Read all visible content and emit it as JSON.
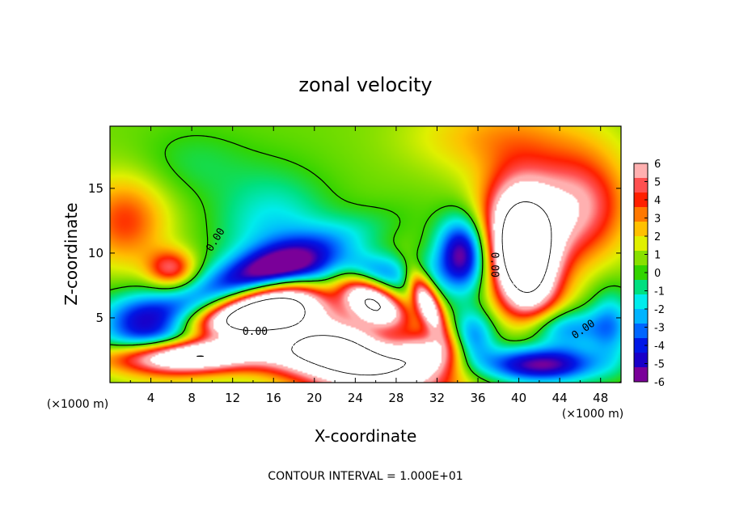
{
  "chart_data": {
    "type": "heatmap",
    "title": "zonal velocity",
    "xlabel": "X-coordinate",
    "ylabel": "Z-coordinate",
    "x_unit": "(×1000 m)",
    "y_unit": "(×1000 m)",
    "xlim": [
      0,
      50
    ],
    "ylim": [
      0,
      19.8
    ],
    "x_ticks": [
      4,
      8,
      12,
      16,
      20,
      24,
      28,
      32,
      36,
      40,
      44,
      48
    ],
    "y_ticks": [
      5,
      10,
      15
    ],
    "colorbar": {
      "range": [
        -6,
        6
      ],
      "ticks": [
        6,
        5,
        4,
        3,
        2,
        1,
        0,
        -1,
        -2,
        -3,
        -4,
        -5,
        -6
      ],
      "colors": [
        "#7a0099",
        "#1a00c8",
        "#0018e6",
        "#0066ff",
        "#00b4ff",
        "#00ecec",
        "#00e080",
        "#33d400",
        "#88e000",
        "#e0f000",
        "#ffc000",
        "#ff7800",
        "#ff2000",
        "#ff5050",
        "#ffb0b0"
      ],
      "saturated_above": "#ffffff"
    },
    "contour_interval": "1.000E+01",
    "contour_note": "CONTOUR INTERVAL = 1.000E+01",
    "contour_labels": [
      "0.00",
      "0.00",
      "0.00",
      "0.00"
    ],
    "features": [
      {
        "label": "strong positive jet (saturated)",
        "x": 14,
        "z": 5.5,
        "value": 10
      },
      {
        "label": "strong positive core (saturated)",
        "x": 22,
        "z": 2.2,
        "value": 12
      },
      {
        "label": "positive lens",
        "x": 25,
        "z": 6.5,
        "value": 8
      },
      {
        "label": "positive streak",
        "x": 31,
        "z": 6.0,
        "value": 7
      },
      {
        "label": "tall positive plume (saturated)",
        "x": 40.5,
        "z": 9.5,
        "value": 10
      },
      {
        "label": "negative band",
        "x": 24,
        "z": 8.2,
        "value": -5
      },
      {
        "label": "negative pocket",
        "x": 34.5,
        "z": 10,
        "value": -6
      },
      {
        "label": "near-surface negative",
        "x": 42,
        "z": 1.3,
        "value": -5
      },
      {
        "label": "upper positive region",
        "x": 42,
        "z": 13,
        "value": 5
      },
      {
        "label": "upper-left positive region",
        "x": 1.5,
        "z": 12.5,
        "value": 3.5
      },
      {
        "label": "upper-right yellow region",
        "x": 38,
        "z": 18.5,
        "value": 2.5
      }
    ]
  }
}
